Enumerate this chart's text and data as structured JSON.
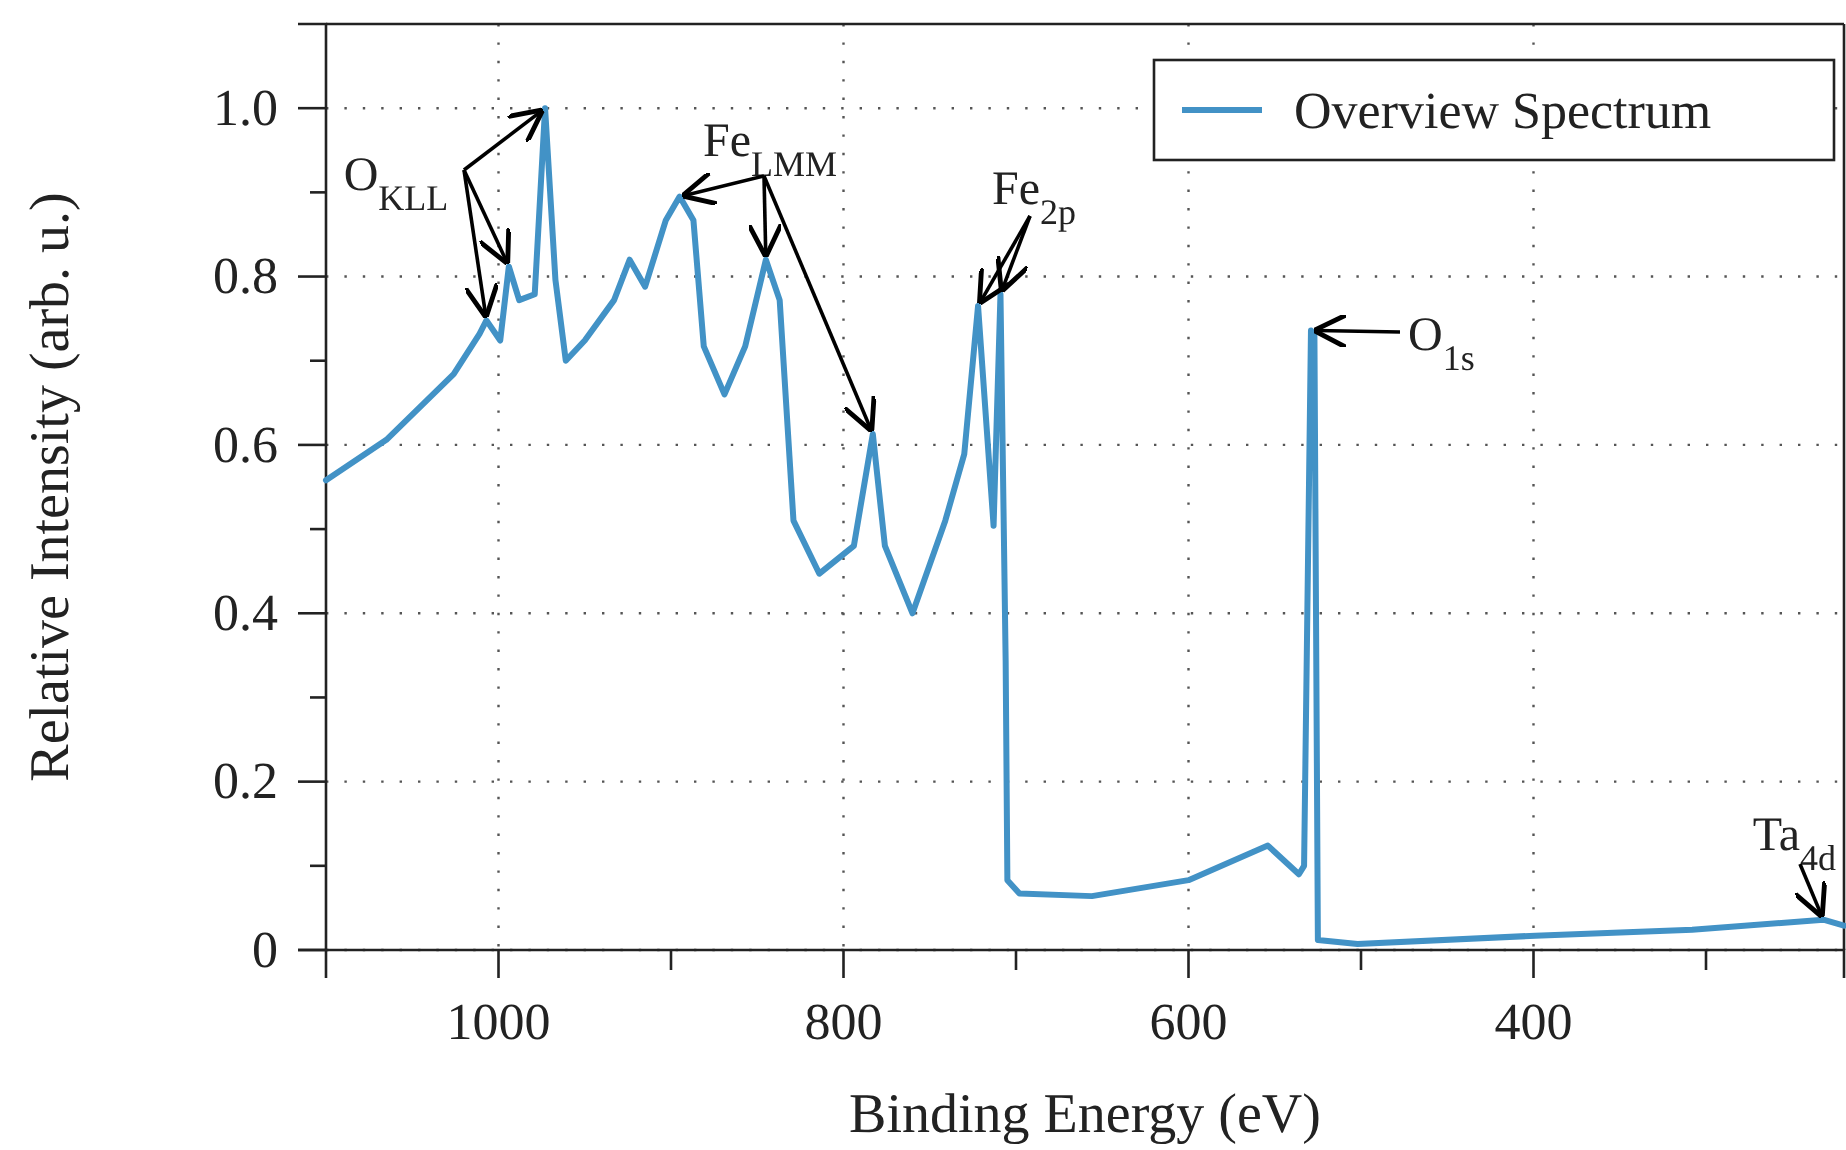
{
  "chart_data": {
    "type": "line",
    "xlabel": "Binding Energy (eV)",
    "ylabel": "Relative Intensity (arb. u.)",
    "xlim": [
      1100,
      220
    ],
    "ylim": [
      0,
      1.1
    ],
    "xticks": [
      {
        "value": 1000,
        "label": "1000"
      },
      {
        "value": 900,
        "label": null
      },
      800,
      {
        "value": 700,
        "label": null
      },
      600,
      {
        "value": 500,
        "label": null
      },
      400,
      {
        "value": 300,
        "label": null
      }
    ],
    "yticks": [
      0,
      {
        "value": 0.1,
        "label": null
      },
      0.2,
      {
        "value": 0.3,
        "label": null
      },
      0.4,
      {
        "value": 0.5,
        "label": null
      },
      0.6,
      {
        "value": 0.7,
        "label": null
      },
      0.8,
      {
        "value": 0.9,
        "label": null
      },
      {
        "value": 1,
        "label": "1.0"
      }
    ],
    "grid": true,
    "legend": "top right",
    "line_style": "solid",
    "series": [
      {
        "name": "Overview Spectrum",
        "color": "#4292c6",
        "x": [
          1100,
          1065,
          1026,
          1011,
          1007,
          999,
          994,
          988,
          979,
          973,
          967,
          961,
          950,
          933,
          924,
          915,
          903,
          895,
          887,
          881,
          869,
          857,
          845,
          837,
          829,
          814,
          794,
          783,
          776,
          760,
          741,
          730,
          722,
          713,
          709,
          706,
          705,
          698,
          656,
          600,
          554,
          536,
          533,
          529,
          527,
          525,
          502,
          399,
          308,
          232,
          220
        ],
        "values": [
          0.558,
          0.606,
          0.684,
          0.732,
          0.748,
          0.724,
          0.812,
          0.772,
          0.779,
          1.0,
          0.796,
          0.7,
          0.724,
          0.772,
          0.82,
          0.788,
          0.867,
          0.895,
          0.867,
          0.717,
          0.66,
          0.717,
          0.82,
          0.772,
          0.51,
          0.447,
          0.48,
          0.613,
          0.48,
          0.4,
          0.51,
          0.589,
          0.765,
          0.504,
          0.779,
          0.344,
          0.083,
          0.067,
          0.064,
          0.083,
          0.124,
          0.09,
          0.1,
          0.736,
          0.73,
          0.012,
          0.007,
          0.017,
          0.024,
          0.036,
          0.029
        ]
      }
    ],
    "annotations": [
      {
        "text": "O$_{KLL}$",
        "x": 1007,
        "y": 0.748
      },
      {
        "text": "Fe$_{LMM}$",
        "x": 895,
        "y": 0.895
      },
      {
        "text": "Fe$_{2p}$",
        "x": 722,
        "y": 0.765
      },
      {
        "text": "O$_{1s}$",
        "x": 529,
        "y": 0.736
      },
      {
        "text": "Ta$_{4d}$",
        "x": 232,
        "y": 0.036
      }
    ]
  }
}
